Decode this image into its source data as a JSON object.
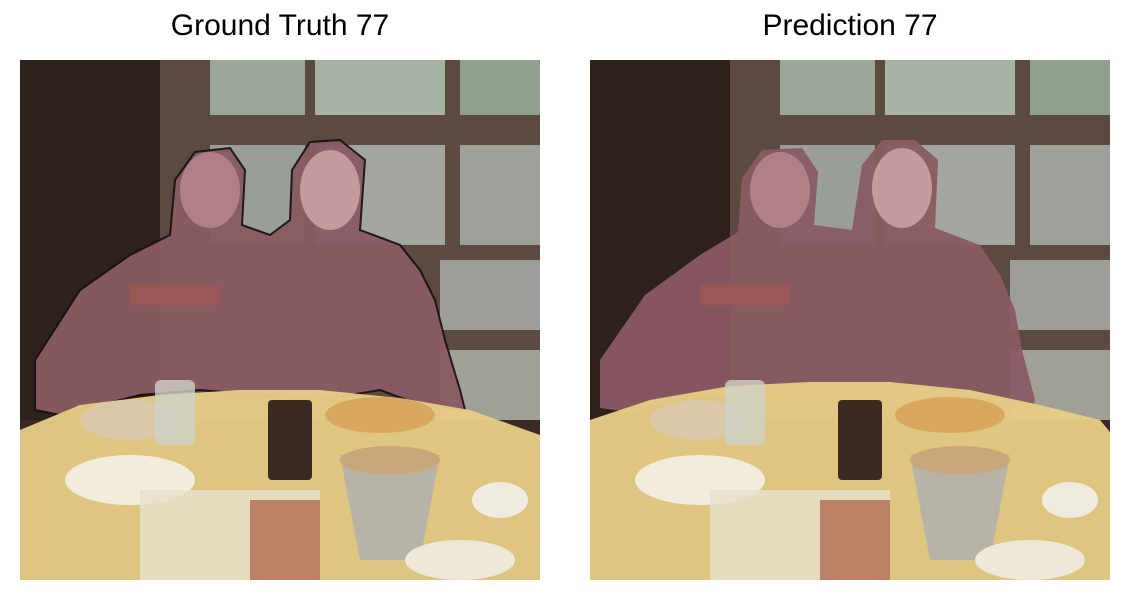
{
  "panels": [
    {
      "title": "Ground Truth 77",
      "mask_classes": [
        "person",
        "table"
      ]
    },
    {
      "title": "Prediction 77",
      "mask_classes": [
        "person",
        "table"
      ]
    }
  ],
  "colors": {
    "person_mask": "#8a5a63",
    "table_mask": "#e8cf86",
    "window_frame": "#3a2a22",
    "background_wall": "#3b2a24"
  }
}
